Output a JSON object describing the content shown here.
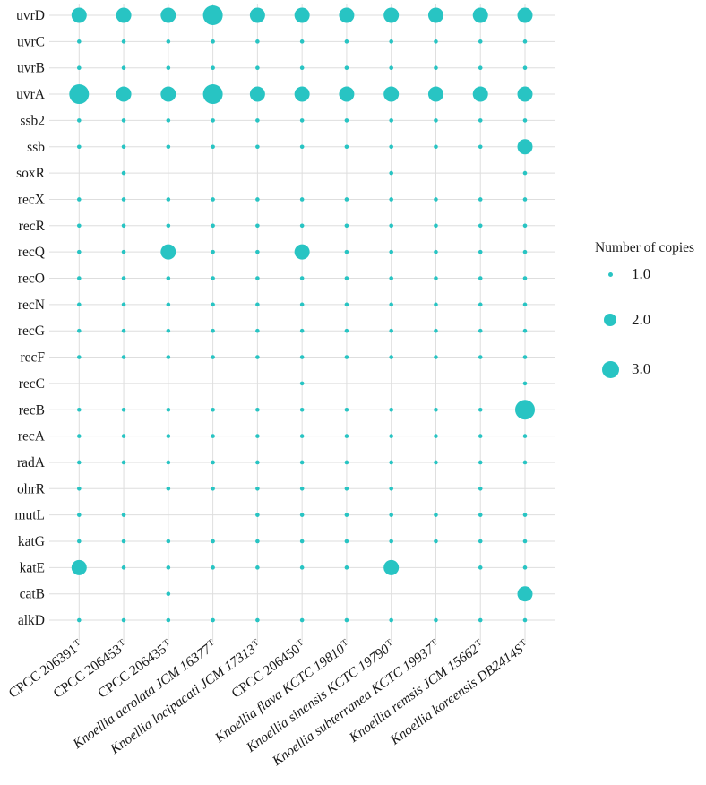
{
  "chart_data": {
    "type": "scatter",
    "subtype": "bubble-matrix",
    "title": "",
    "xlabel": "",
    "ylabel": "",
    "grid": true,
    "dot_color": "#28c4c3",
    "grid_color": "#dedede",
    "text_color": "#1a1a1a",
    "y_categories": [
      "uvrD",
      "uvrC",
      "uvrB",
      "uvrA",
      "ssb2",
      "ssb",
      "soxR",
      "recX",
      "recR",
      "recQ",
      "recO",
      "recN",
      "recG",
      "recF",
      "recC",
      "recB",
      "recA",
      "radA",
      "ohrR",
      "mutL",
      "katG",
      "katE",
      "catB",
      "alkD"
    ],
    "x_categories": [
      {
        "name": "CPCC 206391",
        "sup": "T",
        "italic": false
      },
      {
        "name": "CPCC 206453",
        "sup": "T",
        "italic": false
      },
      {
        "name": "CPCC 206435",
        "sup": "T",
        "italic": false
      },
      {
        "name": "Knoellia aerolata JCM 16377",
        "sup": "T",
        "italic": true
      },
      {
        "name": "Knoellia locipacati JCM 17313",
        "sup": "T",
        "italic": true
      },
      {
        "name": "CPCC 206450",
        "sup": "T",
        "italic": false
      },
      {
        "name": "Knoellia flava KCTC 19810",
        "sup": "T",
        "italic": true
      },
      {
        "name": "Knoellia sinensis KCTC 19790",
        "sup": "T",
        "italic": true
      },
      {
        "name": "Knoellia subterranea KCTC 19937",
        "sup": "T",
        "italic": true
      },
      {
        "name": "Knoellia remsis JCM 15662",
        "sup": "T",
        "italic": true
      },
      {
        "name": "Knoellia koreensis DB2414S",
        "sup": "T",
        "italic": true
      }
    ],
    "matrix_note": "rows = genes top to bottom, columns = strains left to right; value = number of gene copies, 0 = gene absent",
    "matrix": [
      [
        2,
        2,
        2,
        3,
        2,
        2,
        2,
        2,
        2,
        2,
        2
      ],
      [
        1,
        1,
        1,
        1,
        1,
        1,
        1,
        1,
        1,
        1,
        1
      ],
      [
        1,
        1,
        1,
        1,
        1,
        1,
        1,
        1,
        1,
        1,
        1
      ],
      [
        3,
        2,
        2,
        3,
        2,
        2,
        2,
        2,
        2,
        2,
        2
      ],
      [
        1,
        1,
        1,
        1,
        1,
        1,
        1,
        1,
        1,
        1,
        1
      ],
      [
        1,
        1,
        1,
        1,
        1,
        1,
        1,
        1,
        1,
        1,
        2
      ],
      [
        0,
        1,
        0,
        0,
        0,
        0,
        0,
        1,
        0,
        0,
        1
      ],
      [
        1,
        1,
        1,
        1,
        1,
        1,
        1,
        1,
        1,
        1,
        1
      ],
      [
        1,
        1,
        1,
        1,
        1,
        1,
        1,
        1,
        1,
        1,
        1
      ],
      [
        1,
        1,
        2,
        1,
        1,
        2,
        1,
        1,
        1,
        1,
        1
      ],
      [
        1,
        1,
        1,
        1,
        1,
        1,
        1,
        1,
        1,
        1,
        1
      ],
      [
        1,
        1,
        1,
        1,
        1,
        1,
        1,
        1,
        1,
        1,
        1
      ],
      [
        1,
        1,
        1,
        1,
        1,
        1,
        1,
        1,
        1,
        1,
        1
      ],
      [
        1,
        1,
        1,
        1,
        1,
        1,
        1,
        1,
        1,
        1,
        1
      ],
      [
        0,
        0,
        0,
        0,
        0,
        1,
        0,
        0,
        0,
        0,
        1
      ],
      [
        1,
        1,
        1,
        1,
        1,
        1,
        1,
        1,
        1,
        1,
        3
      ],
      [
        1,
        1,
        1,
        1,
        1,
        1,
        1,
        1,
        1,
        1,
        1
      ],
      [
        1,
        1,
        1,
        1,
        1,
        1,
        1,
        1,
        1,
        1,
        1
      ],
      [
        1,
        0,
        1,
        1,
        1,
        1,
        1,
        1,
        0,
        1,
        0
      ],
      [
        1,
        1,
        0,
        0,
        1,
        1,
        1,
        1,
        1,
        1,
        1
      ],
      [
        1,
        1,
        1,
        1,
        1,
        1,
        1,
        1,
        1,
        1,
        1
      ],
      [
        2,
        1,
        1,
        1,
        1,
        1,
        1,
        2,
        0,
        1,
        1
      ],
      [
        0,
        0,
        1,
        0,
        0,
        0,
        0,
        0,
        0,
        0,
        2
      ],
      [
        1,
        1,
        1,
        1,
        1,
        1,
        1,
        1,
        1,
        1,
        1
      ]
    ],
    "legend": {
      "title": "Number of copies",
      "position": "right",
      "items": [
        {
          "label": "1.0",
          "value": 1
        },
        {
          "label": "2.0",
          "value": 2
        },
        {
          "label": "3.0",
          "value": 3
        }
      ]
    }
  }
}
